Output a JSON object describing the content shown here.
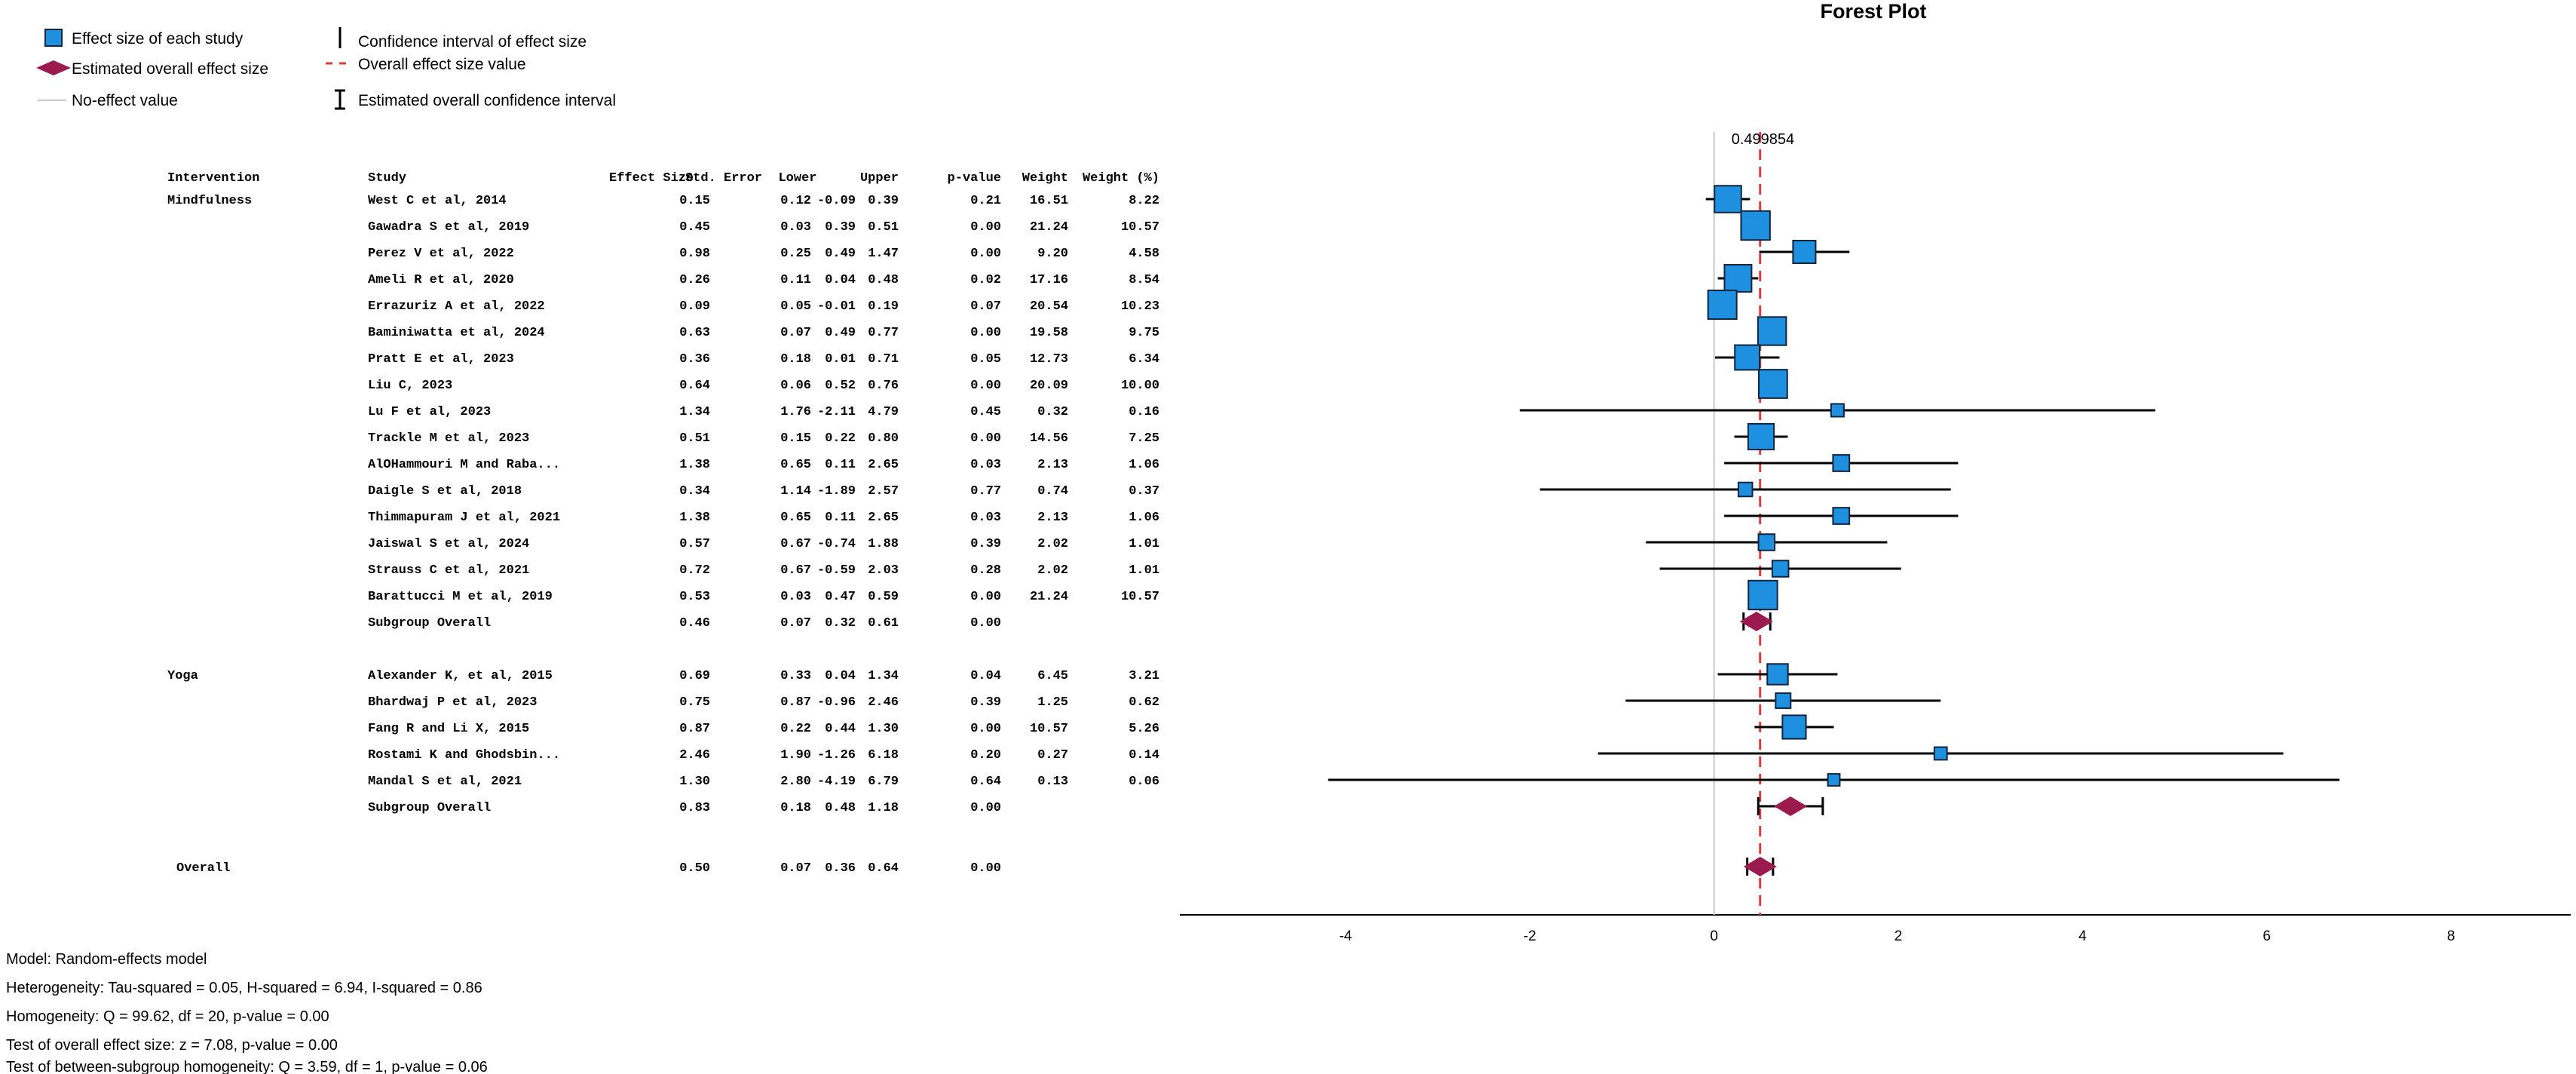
{
  "title": "Forest Plot",
  "legend": {
    "effect_size": "Effect size of each study",
    "overall_effect": "Estimated overall effect size",
    "no_effect": "No-effect value",
    "ci": "Confidence interval of effect size",
    "overall_line": "Overall effect size value",
    "overall_ci": "Estimated overall confidence interval"
  },
  "columns": [
    "Intervention",
    "Study",
    "Effect Size",
    "Std. Error",
    "Lower",
    "Upper",
    "p-value",
    "Weight",
    "Weight (%)"
  ],
  "chart_data": {
    "type": "forest",
    "xlim": [
      -5.8,
      9.3
    ],
    "xticks": [
      -4,
      -2,
      0,
      2,
      4,
      6,
      8
    ],
    "no_effect_value": 0,
    "overall_value": 0.499854,
    "overall_value_label": "0.499854",
    "groups": [
      {
        "name": "Mindfulness",
        "studies": [
          {
            "study": "West C et al, 2014",
            "es": "0.15",
            "se": "0.12",
            "lo": "-0.09",
            "hi": "0.39",
            "p": "0.21",
            "w": "16.51",
            "wp": "8.22"
          },
          {
            "study": "Gawadra S et al, 2019",
            "es": "0.45",
            "se": "0.03",
            "lo": "0.39",
            "hi": "0.51",
            "p": "0.00",
            "w": "21.24",
            "wp": "10.57"
          },
          {
            "study": "Perez V et al, 2022",
            "es": "0.98",
            "se": "0.25",
            "lo": "0.49",
            "hi": "1.47",
            "p": "0.00",
            "w": "9.20",
            "wp": "4.58"
          },
          {
            "study": "Ameli R et al, 2020",
            "es": "0.26",
            "se": "0.11",
            "lo": "0.04",
            "hi": "0.48",
            "p": "0.02",
            "w": "17.16",
            "wp": "8.54"
          },
          {
            "study": "Errazuriz A et al, 2022",
            "es": "0.09",
            "se": "0.05",
            "lo": "-0.01",
            "hi": "0.19",
            "p": "0.07",
            "w": "20.54",
            "wp": "10.23"
          },
          {
            "study": "Baminiwatta et al, 2024",
            "es": "0.63",
            "se": "0.07",
            "lo": "0.49",
            "hi": "0.77",
            "p": "0.00",
            "w": "19.58",
            "wp": "9.75"
          },
          {
            "study": "Pratt E et al, 2023",
            "es": "0.36",
            "se": "0.18",
            "lo": "0.01",
            "hi": "0.71",
            "p": "0.05",
            "w": "12.73",
            "wp": "6.34"
          },
          {
            "study": "Liu C, 2023",
            "es": "0.64",
            "se": "0.06",
            "lo": "0.52",
            "hi": "0.76",
            "p": "0.00",
            "w": "20.09",
            "wp": "10.00"
          },
          {
            "study": "Lu F et al, 2023",
            "es": "1.34",
            "se": "1.76",
            "lo": "-2.11",
            "hi": "4.79",
            "p": "0.45",
            "w": "0.32",
            "wp": "0.16"
          },
          {
            "study": "Trackle M et al, 2023",
            "es": "0.51",
            "se": "0.15",
            "lo": "0.22",
            "hi": "0.80",
            "p": "0.00",
            "w": "14.56",
            "wp": "7.25"
          },
          {
            "study": "AlOHammouri M and Raba...",
            "es": "1.38",
            "se": "0.65",
            "lo": "0.11",
            "hi": "2.65",
            "p": "0.03",
            "w": "2.13",
            "wp": "1.06"
          },
          {
            "study": "Daigle S et al, 2018",
            "es": "0.34",
            "se": "1.14",
            "lo": "-1.89",
            "hi": "2.57",
            "p": "0.77",
            "w": "0.74",
            "wp": "0.37"
          },
          {
            "study": "Thimmapuram J et al, 2021",
            "es": "1.38",
            "se": "0.65",
            "lo": "0.11",
            "hi": "2.65",
            "p": "0.03",
            "w": "2.13",
            "wp": "1.06"
          },
          {
            "study": "Jaiswal S et al, 2024",
            "es": "0.57",
            "se": "0.67",
            "lo": "-0.74",
            "hi": "1.88",
            "p": "0.39",
            "w": "2.02",
            "wp": "1.01"
          },
          {
            "study": "Strauss C et al, 2021",
            "es": "0.72",
            "se": "0.67",
            "lo": "-0.59",
            "hi": "2.03",
            "p": "0.28",
            "w": "2.02",
            "wp": "1.01"
          },
          {
            "study": "Barattucci M et al, 2019",
            "es": "0.53",
            "se": "0.03",
            "lo": "0.47",
            "hi": "0.59",
            "p": "0.00",
            "w": "21.24",
            "wp": "10.57"
          }
        ],
        "subgroup": {
          "label": "Subgroup Overall",
          "es": "0.46",
          "se": "0.07",
          "lo": "0.32",
          "hi": "0.61",
          "p": "0.00"
        }
      },
      {
        "name": "Yoga",
        "studies": [
          {
            "study": "Alexander K, et al, 2015",
            "es": "0.69",
            "se": "0.33",
            "lo": "0.04",
            "hi": "1.34",
            "p": "0.04",
            "w": "6.45",
            "wp": "3.21"
          },
          {
            "study": "Bhardwaj P et al, 2023",
            "es": "0.75",
            "se": "0.87",
            "lo": "-0.96",
            "hi": "2.46",
            "p": "0.39",
            "w": "1.25",
            "wp": "0.62"
          },
          {
            "study": "Fang R and Li X, 2015",
            "es": "0.87",
            "se": "0.22",
            "lo": "0.44",
            "hi": "1.30",
            "p": "0.00",
            "w": "10.57",
            "wp": "5.26"
          },
          {
            "study": "Rostami K and Ghodsbin...",
            "es": "2.46",
            "se": "1.90",
            "lo": "-1.26",
            "hi": "6.18",
            "p": "0.20",
            "w": "0.27",
            "wp": "0.14"
          },
          {
            "study": "Mandal S et al, 2021",
            "es": "1.30",
            "se": "2.80",
            "lo": "-4.19",
            "hi": "6.79",
            "p": "0.64",
            "w": "0.13",
            "wp": "0.06"
          }
        ],
        "subgroup": {
          "label": "Subgroup Overall",
          "es": "0.83",
          "se": "0.18",
          "lo": "0.48",
          "hi": "1.18",
          "p": "0.00"
        }
      }
    ],
    "overall": {
      "label": "Overall",
      "es": "0.50",
      "se": "0.07",
      "lo": "0.36",
      "hi": "0.64",
      "p": "0.00"
    }
  },
  "footer": [
    "Model: Random-effects model",
    "Heterogeneity: Tau-squared = 0.05, H-squared = 6.94, I-squared = 0.86",
    "Homogeneity: Q = 99.62, df = 20, p-value = 0.00",
    "Test of overall effect size: z = 7.08, p-value = 0.00",
    "Test of between-subgroup homogeneity: Q = 3.59, df = 1, p-value = 0.06"
  ],
  "colors": {
    "marker": "#1f8fe0",
    "marker_border": "#10253f",
    "diamond": "#9b1b4f",
    "overall_line": "#e03a3a",
    "no_effect_line": "#c8c8c8",
    "text": "#000000"
  }
}
